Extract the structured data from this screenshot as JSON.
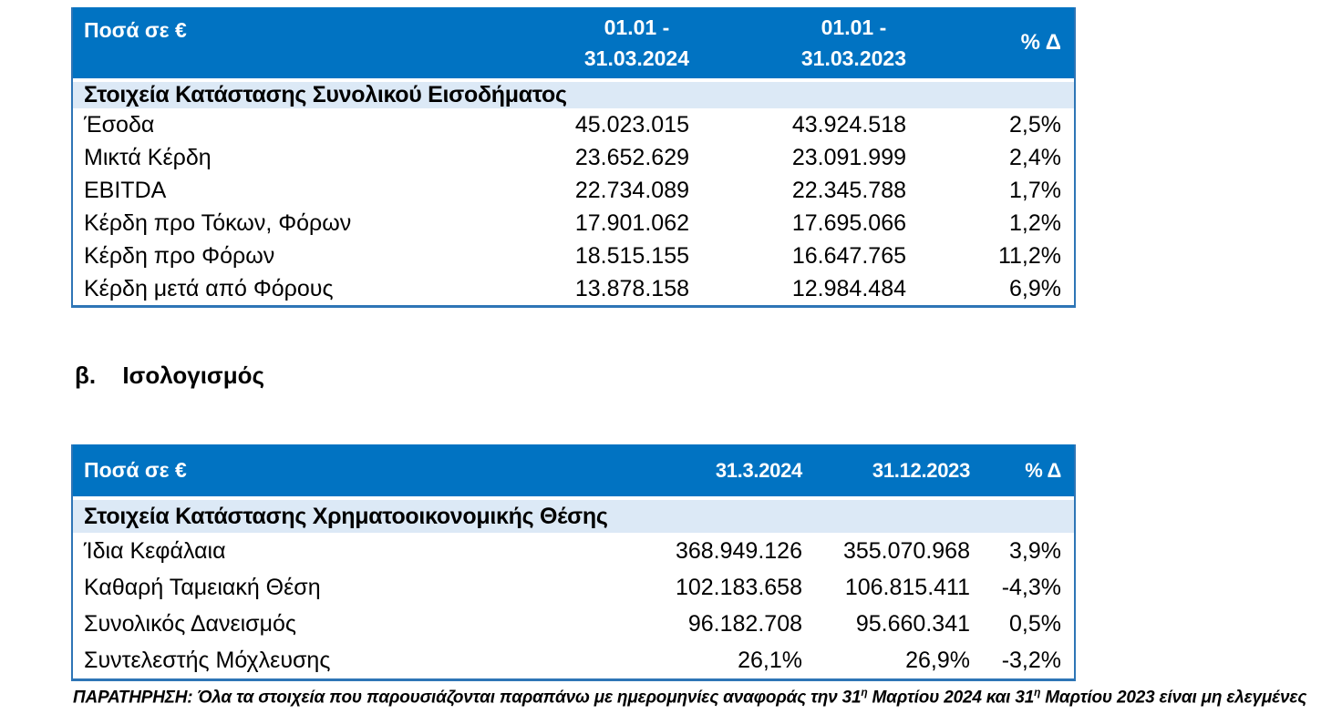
{
  "colors": {
    "header_bg": "#0173C2",
    "subheader_bg": "#DCE9F6",
    "border_blue": "#2E75B6",
    "header_text": "#FFFFFF",
    "body_text": "#000000"
  },
  "table1": {
    "header": {
      "col1": "Ποσά σε €",
      "col2_line1": "01.01 -",
      "col2_line2": "31.03.2024",
      "col3_line1": "01.01 -",
      "col3_line2": "31.03.2023",
      "col4": "% Δ"
    },
    "section": "Στοιχεία Κατάστασης Συνολικού Εισοδήματος",
    "rows": [
      {
        "label": "Έσοδα",
        "v1": "45.023.015",
        "v2": "43.924.518",
        "delta": "2,5%"
      },
      {
        "label": "Μικτά Κέρδη",
        "v1": "23.652.629",
        "v2": "23.091.999",
        "delta": "2,4%"
      },
      {
        "label": "EBITDA",
        "v1": "22.734.089",
        "v2": "22.345.788",
        "delta": "1,7%"
      },
      {
        "label": "Κέρδη προ Τόκων, Φόρων",
        "v1": "17.901.062",
        "v2": "17.695.066",
        "delta": "1,2%"
      },
      {
        "label": "Κέρδη προ Φόρων",
        "v1": "18.515.155",
        "v2": "16.647.765",
        "delta": "11,2%"
      },
      {
        "label": "Κέρδη μετά από Φόρους",
        "v1": "13.878.158",
        "v2": "12.984.484",
        "delta": "6,9%"
      }
    ]
  },
  "section_heading": {
    "index": "β.",
    "title": "Ισολογισμός"
  },
  "table2": {
    "header": {
      "col1": "Ποσά σε €",
      "col2": "31.3.2024",
      "col3": "31.12.2023",
      "col4": "% Δ"
    },
    "section": "Στοιχεία Κατάστασης Χρηματοοικονομικής Θέσης",
    "rows": [
      {
        "label": "Ίδια Κεφάλαια",
        "v1": "368.949.126",
        "v2": "355.070.968",
        "delta": "3,9%"
      },
      {
        "label": "Καθαρή Ταμειακή Θέση",
        "v1": "102.183.658",
        "v2": "106.815.411",
        "delta": "-4,3%"
      },
      {
        "label": "Συνολικός Δανεισμός",
        "v1": "96.182.708",
        "v2": "95.660.341",
        "delta": "0,5%"
      },
      {
        "label": "Συντελεστής Μόχλευσης",
        "v1": "26,1%",
        "v2": "26,9%",
        "delta": "-3,2%"
      }
    ]
  },
  "note": {
    "p1": "ΠΑΡΑΤΗΡΗΣΗ: Όλα τα στοιχεία που παρουσιάζονται παραπάνω με ημερομηνίες αναφοράς την 31",
    "sup1": "η",
    "p2": " Μαρτίου 2024 και 31",
    "sup2": "η",
    "p3": " Μαρτίου 2023 είναι μη ελεγμένες"
  }
}
